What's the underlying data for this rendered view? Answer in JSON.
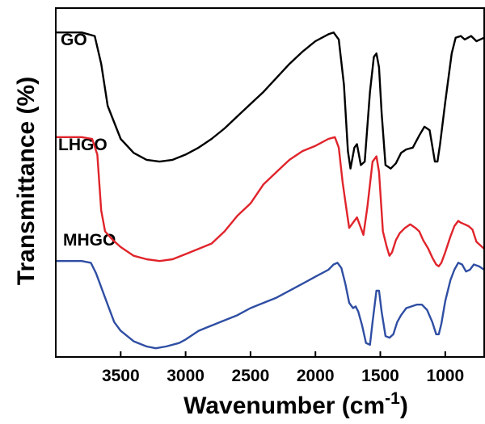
{
  "chart_data": {
    "type": "line",
    "title": "",
    "xlabel": "Wavenumber (cm",
    "xlabel_sup": "-1",
    "xlabel_close": ")",
    "ylabel": "Transmittance (%)",
    "xlim": [
      4000,
      700
    ],
    "x_reversed": true,
    "x_ticks": [
      3500,
      3000,
      2500,
      2000,
      1500,
      1000
    ],
    "y_ticks_shown": false,
    "grid": false,
    "legend": "none",
    "series": [
      {
        "name": "GO",
        "color": "#000000",
        "points": [
          [
            4000,
            0.93
          ],
          [
            3800,
            0.93
          ],
          [
            3700,
            0.92
          ],
          [
            3650,
            0.84
          ],
          [
            3600,
            0.72
          ],
          [
            3500,
            0.625
          ],
          [
            3400,
            0.585
          ],
          [
            3300,
            0.565
          ],
          [
            3200,
            0.56
          ],
          [
            3100,
            0.565
          ],
          [
            3000,
            0.58
          ],
          [
            2900,
            0.6
          ],
          [
            2800,
            0.625
          ],
          [
            2700,
            0.655
          ],
          [
            2600,
            0.69
          ],
          [
            2500,
            0.725
          ],
          [
            2400,
            0.76
          ],
          [
            2300,
            0.8
          ],
          [
            2200,
            0.84
          ],
          [
            2100,
            0.875
          ],
          [
            2000,
            0.905
          ],
          [
            1900,
            0.925
          ],
          [
            1860,
            0.93
          ],
          [
            1820,
            0.91
          ],
          [
            1780,
            0.78
          ],
          [
            1750,
            0.59
          ],
          [
            1730,
            0.54
          ],
          [
            1700,
            0.6
          ],
          [
            1680,
            0.61
          ],
          [
            1650,
            0.55
          ],
          [
            1620,
            0.56
          ],
          [
            1580,
            0.76
          ],
          [
            1550,
            0.86
          ],
          [
            1530,
            0.87
          ],
          [
            1510,
            0.83
          ],
          [
            1490,
            0.7
          ],
          [
            1460,
            0.55
          ],
          [
            1420,
            0.54
          ],
          [
            1380,
            0.555
          ],
          [
            1340,
            0.585
          ],
          [
            1300,
            0.595
          ],
          [
            1250,
            0.6
          ],
          [
            1200,
            0.635
          ],
          [
            1160,
            0.66
          ],
          [
            1120,
            0.65
          ],
          [
            1080,
            0.56
          ],
          [
            1060,
            0.56
          ],
          [
            1040,
            0.61
          ],
          [
            1000,
            0.73
          ],
          [
            950,
            0.87
          ],
          [
            920,
            0.915
          ],
          [
            880,
            0.92
          ],
          [
            850,
            0.91
          ],
          [
            800,
            0.92
          ],
          [
            760,
            0.905
          ],
          [
            700,
            0.915
          ]
        ]
      },
      {
        "name": "LHGO",
        "color": "#e0242b",
        "points": [
          [
            4000,
            0.63
          ],
          [
            3800,
            0.63
          ],
          [
            3720,
            0.625
          ],
          [
            3680,
            0.58
          ],
          [
            3650,
            0.42
          ],
          [
            3620,
            0.36
          ],
          [
            3560,
            0.335
          ],
          [
            3500,
            0.315
          ],
          [
            3400,
            0.29
          ],
          [
            3300,
            0.28
          ],
          [
            3200,
            0.275
          ],
          [
            3100,
            0.28
          ],
          [
            3000,
            0.295
          ],
          [
            2900,
            0.31
          ],
          [
            2800,
            0.325
          ],
          [
            2700,
            0.36
          ],
          [
            2600,
            0.405
          ],
          [
            2500,
            0.44
          ],
          [
            2400,
            0.495
          ],
          [
            2300,
            0.53
          ],
          [
            2200,
            0.565
          ],
          [
            2100,
            0.59
          ],
          [
            2000,
            0.605
          ],
          [
            1900,
            0.625
          ],
          [
            1850,
            0.63
          ],
          [
            1820,
            0.6
          ],
          [
            1790,
            0.5
          ],
          [
            1760,
            0.42
          ],
          [
            1740,
            0.37
          ],
          [
            1700,
            0.39
          ],
          [
            1680,
            0.4
          ],
          [
            1660,
            0.38
          ],
          [
            1630,
            0.35
          ],
          [
            1600,
            0.43
          ],
          [
            1560,
            0.56
          ],
          [
            1530,
            0.575
          ],
          [
            1510,
            0.53
          ],
          [
            1480,
            0.36
          ],
          [
            1450,
            0.315
          ],
          [
            1430,
            0.29
          ],
          [
            1410,
            0.3
          ],
          [
            1380,
            0.335
          ],
          [
            1350,
            0.355
          ],
          [
            1310,
            0.37
          ],
          [
            1270,
            0.38
          ],
          [
            1230,
            0.37
          ],
          [
            1200,
            0.36
          ],
          [
            1170,
            0.335
          ],
          [
            1130,
            0.31
          ],
          [
            1100,
            0.285
          ],
          [
            1070,
            0.265
          ],
          [
            1050,
            0.26
          ],
          [
            1030,
            0.27
          ],
          [
            1000,
            0.3
          ],
          [
            960,
            0.345
          ],
          [
            930,
            0.375
          ],
          [
            900,
            0.39
          ],
          [
            880,
            0.385
          ],
          [
            850,
            0.38
          ],
          [
            820,
            0.375
          ],
          [
            790,
            0.365
          ],
          [
            760,
            0.33
          ],
          [
            730,
            0.32
          ],
          [
            700,
            0.31
          ]
        ]
      },
      {
        "name": "MHGO",
        "color": "#2f4ea3",
        "points": [
          [
            4000,
            0.275
          ],
          [
            3800,
            0.275
          ],
          [
            3730,
            0.27
          ],
          [
            3690,
            0.24
          ],
          [
            3650,
            0.2
          ],
          [
            3600,
            0.15
          ],
          [
            3550,
            0.1
          ],
          [
            3500,
            0.075
          ],
          [
            3400,
            0.045
          ],
          [
            3300,
            0.03
          ],
          [
            3230,
            0.025
          ],
          [
            3150,
            0.03
          ],
          [
            3050,
            0.04
          ],
          [
            3000,
            0.05
          ],
          [
            2900,
            0.075
          ],
          [
            2800,
            0.09
          ],
          [
            2700,
            0.105
          ],
          [
            2600,
            0.12
          ],
          [
            2500,
            0.14
          ],
          [
            2400,
            0.155
          ],
          [
            2300,
            0.17
          ],
          [
            2200,
            0.19
          ],
          [
            2100,
            0.21
          ],
          [
            2000,
            0.23
          ],
          [
            1900,
            0.25
          ],
          [
            1860,
            0.265
          ],
          [
            1830,
            0.27
          ],
          [
            1800,
            0.255
          ],
          [
            1770,
            0.21
          ],
          [
            1740,
            0.155
          ],
          [
            1710,
            0.14
          ],
          [
            1690,
            0.145
          ],
          [
            1670,
            0.13
          ],
          [
            1640,
            0.09
          ],
          [
            1610,
            0.04
          ],
          [
            1580,
            0.035
          ],
          [
            1560,
            0.1
          ],
          [
            1530,
            0.19
          ],
          [
            1510,
            0.19
          ],
          [
            1490,
            0.13
          ],
          [
            1460,
            0.06
          ],
          [
            1430,
            0.055
          ],
          [
            1400,
            0.065
          ],
          [
            1370,
            0.1
          ],
          [
            1340,
            0.12
          ],
          [
            1300,
            0.14
          ],
          [
            1260,
            0.145
          ],
          [
            1220,
            0.15
          ],
          [
            1180,
            0.15
          ],
          [
            1140,
            0.135
          ],
          [
            1100,
            0.1
          ],
          [
            1070,
            0.065
          ],
          [
            1050,
            0.065
          ],
          [
            1030,
            0.095
          ],
          [
            1000,
            0.16
          ],
          [
            960,
            0.22
          ],
          [
            930,
            0.25
          ],
          [
            900,
            0.27
          ],
          [
            870,
            0.265
          ],
          [
            840,
            0.245
          ],
          [
            810,
            0.25
          ],
          [
            780,
            0.265
          ],
          [
            740,
            0.26
          ],
          [
            700,
            0.25
          ]
        ]
      }
    ]
  }
}
